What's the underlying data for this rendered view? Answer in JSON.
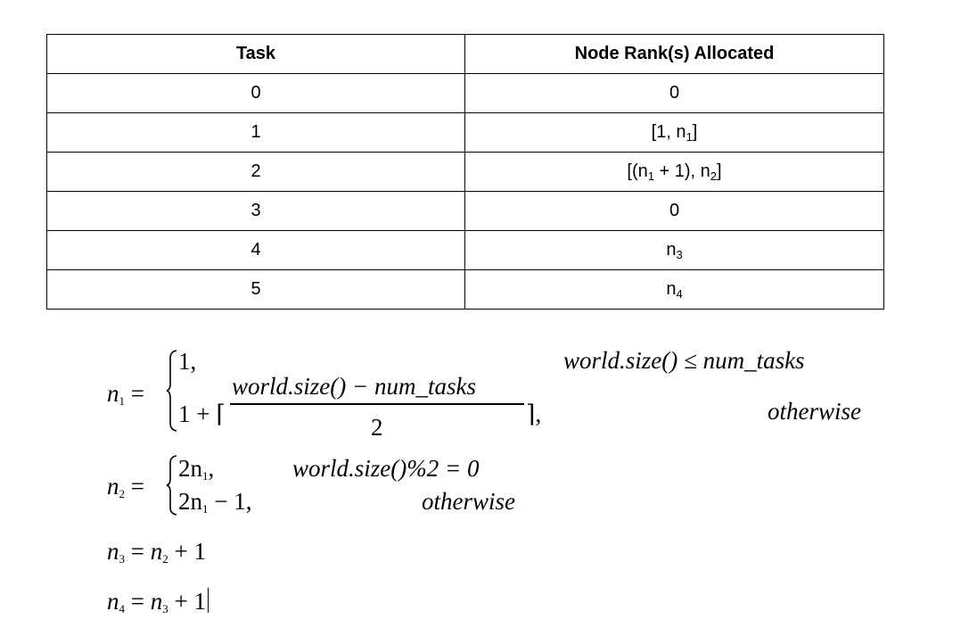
{
  "table": {
    "headers": [
      "Task",
      "Node Rank(s) Allocated"
    ],
    "rows": [
      {
        "task": "0",
        "nodes": "0"
      },
      {
        "task": "1",
        "nodes_parts": [
          "[1, n",
          "1",
          "]"
        ]
      },
      {
        "task": "2",
        "nodes_parts": [
          "[(n",
          "1",
          " + 1), n",
          "2",
          "]"
        ]
      },
      {
        "task": "3",
        "nodes": "0"
      },
      {
        "task": "4",
        "nodes_parts": [
          "n",
          "3"
        ]
      },
      {
        "task": "5",
        "nodes_parts": [
          "n",
          "4"
        ]
      }
    ]
  },
  "equations": {
    "n1": {
      "lhs": "n",
      "lhs_sub": "1",
      "eq": "=",
      "case1_value": "1,",
      "case1_condition": "world.size() ≤ num_tasks",
      "case2_prefix": "1 + ⌈",
      "case2_numerator": "world.size() − num_tasks",
      "case2_denominator": "2",
      "case2_suffix": "⌉,",
      "case2_condition": "otherwise"
    },
    "n2": {
      "lhs": "n",
      "lhs_sub": "2",
      "eq": "=",
      "case1_value": "2n",
      "case1_sub": "1",
      "case1_tail": ",",
      "case1_condition": "world.size()%2 = 0",
      "case2_value": "2n",
      "case2_sub": "1",
      "case2_tail": " − 1,",
      "case2_condition": "otherwise"
    },
    "n3": {
      "lhs": "n",
      "lhs_sub": "3",
      "rhs": "= ",
      "rhs_var": "n",
      "rhs_sub": "2",
      "rhs_tail": " + 1"
    },
    "n4": {
      "lhs": "n",
      "lhs_sub": "4",
      "rhs": "= ",
      "rhs_var": "n",
      "rhs_sub": "3",
      "rhs_tail": " + 1"
    }
  }
}
